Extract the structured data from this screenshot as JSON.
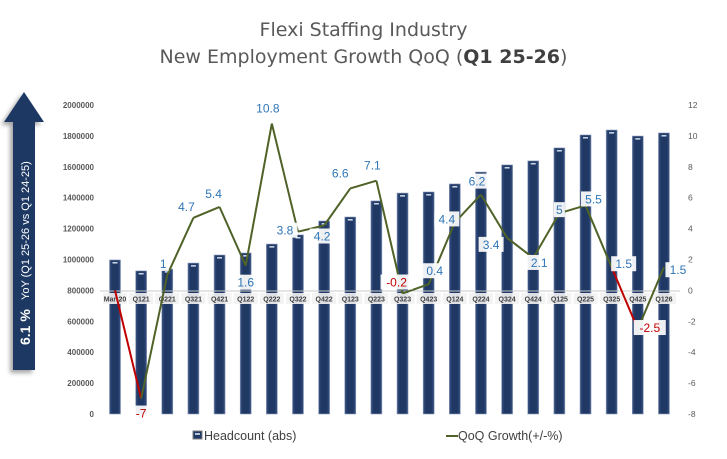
{
  "title_line1": "Flexi Staffing Industry",
  "title_line2_prefix": "New Employment Growth QoQ (",
  "title_line2_bold": "Q1 25-26",
  "title_line2_suffix": ")",
  "yoy_callout": {
    "value": "6.1 %",
    "label": "YoY (Q1 25-26 vs Q1 24-25)",
    "color": "#1f3864"
  },
  "chart_data": {
    "type": "bar+line",
    "title": "Flexi Staffing Industry New Employment Growth QoQ (Q1 25-26)",
    "categories": [
      "Mar-20",
      "Q121",
      "Q221",
      "Q321",
      "Q421",
      "Q122",
      "Q222",
      "Q322",
      "Q422",
      "Q123",
      "Q223",
      "Q323",
      "Q423",
      "Q124",
      "Q224",
      "Q324",
      "Q424",
      "Q125",
      "Q225",
      "Q325",
      "Q425",
      "Q126"
    ],
    "series": [
      {
        "name": "Headcount (abs)",
        "type": "bar",
        "axis": "left",
        "color": "#1f3864",
        "values": [
          997000,
          926000,
          938000,
          977000,
          1029000,
          1042000,
          1100000,
          1159000,
          1249000,
          1275000,
          1379000,
          1430000,
          1437000,
          1489000,
          1566000,
          1612000,
          1638000,
          1722000,
          1806000,
          1838000,
          1799000,
          1819000
        ]
      },
      {
        "name": "QoQ Growth(+/-%)",
        "type": "line",
        "axis": "right",
        "color": "#4f6228",
        "negative_color": "#c00000",
        "values": [
          0,
          -7,
          1,
          4.7,
          5.4,
          1.6,
          10.8,
          3.8,
          4.2,
          6.6,
          7.1,
          -0.2,
          0.4,
          4.4,
          6.2,
          3.4,
          2.1,
          5,
          5.5,
          1.5,
          -2.5,
          1.5
        ],
        "labels": [
          "",
          "-7",
          "1",
          "4.7",
          "5.4",
          "1.6",
          "10.8",
          "3.8",
          "4.2",
          "6.6",
          "7.1",
          "-0.2",
          "0.4",
          "4.4",
          "6.2",
          "3.4",
          "2.1",
          "5",
          "5.5",
          "1.5",
          "-2.5",
          "1.5"
        ]
      }
    ],
    "y_left": {
      "range": [
        0,
        2000000
      ],
      "ticks": [
        "0",
        "200000",
        "400000",
        "600000",
        "800000",
        "1000000",
        "1200000",
        "1400000",
        "1600000",
        "1800000",
        "2000000"
      ]
    },
    "y_right": {
      "range": [
        -8,
        12
      ],
      "ticks": [
        "-8",
        "-6",
        "-4",
        "-2",
        "0",
        "2",
        "4",
        "6",
        "8",
        "10",
        "12"
      ]
    },
    "grid": false,
    "legend": {
      "placement": "bottom",
      "items": [
        "Headcount (abs)",
        "QoQ Growth(+/-%)"
      ]
    }
  }
}
